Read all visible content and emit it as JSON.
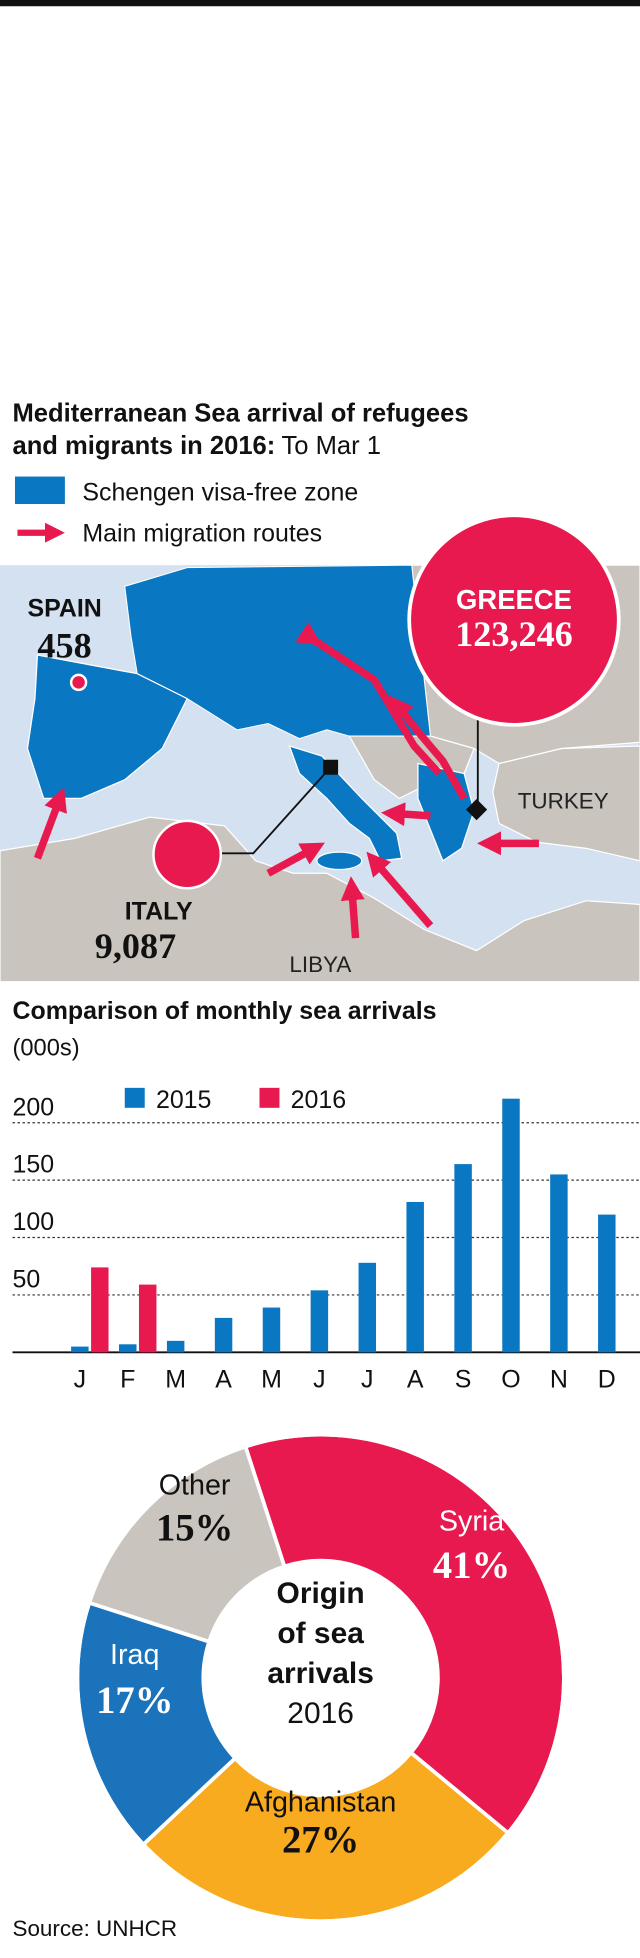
{
  "header": {
    "title": [
      "Mediterranean Sea arrival of refugees",
      "and migrants in 2016:"
    ],
    "subtitle": "To Mar 1",
    "legend": [
      "Schengen visa-free zone",
      "Main migration routes"
    ]
  },
  "map": {
    "labels": [
      {
        "name": "SPAIN",
        "value": "458"
      },
      {
        "name": "ITALY",
        "value": "9,087"
      },
      {
        "name": "GREECE",
        "value": "123,246"
      }
    ],
    "places": [
      "TURKEY",
      "LIBYA"
    ]
  },
  "chart_data": [
    {
      "type": "bar",
      "title": "Comparison of monthly sea arrivals",
      "subtitle": "(000s)",
      "categories": [
        "J",
        "F",
        "M",
        "A",
        "M",
        "J",
        "J",
        "A",
        "S",
        "O",
        "N",
        "D"
      ],
      "series": [
        {
          "name": "2015",
          "color": "#0a77c2",
          "values": [
            5,
            7,
            10,
            30,
            39,
            54,
            78,
            131,
            164,
            221,
            155,
            120
          ]
        },
        {
          "name": "2016",
          "color": "#e8194e",
          "values": [
            74,
            59,
            null,
            null,
            null,
            null,
            null,
            null,
            null,
            null,
            null,
            null
          ]
        }
      ],
      "ylim": [
        0,
        225
      ],
      "yticks": [
        50,
        100,
        150,
        200
      ],
      "grid": true
    },
    {
      "type": "donut",
      "center_text": [
        "Origin",
        "of sea",
        "arrivals"
      ],
      "center_subtext": "2016",
      "categories": [
        "Syria",
        "Afghanistan",
        "Iraq",
        "Other"
      ],
      "values": [
        41,
        27,
        17,
        15
      ],
      "value_labels": [
        "41%",
        "27%",
        "17%",
        "15%"
      ],
      "colors": [
        "#e8194e",
        "#f9ab1f",
        "#1a73bb",
        "#c9c4bd"
      ]
    }
  ],
  "source": "Source: UNHCR"
}
